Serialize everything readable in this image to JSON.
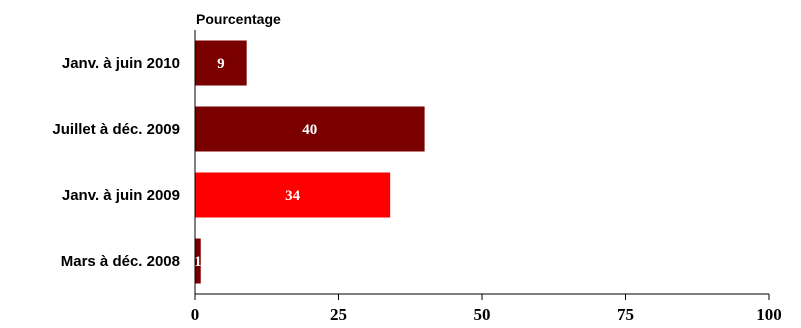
{
  "chart_data": {
    "type": "bar",
    "orientation": "horizontal",
    "ylabel": "Pourcentage",
    "categories": [
      "Janv. à juin 2010",
      "Juillet à déc. 2009",
      "Janv. à juin 2009",
      "Mars à déc. 2008"
    ],
    "values": [
      9,
      40,
      34,
      1
    ],
    "bar_colors": [
      "#7a0000",
      "#7a0000",
      "#ff0000",
      "#7a0000"
    ],
    "data_labels": [
      "9",
      "40",
      "34",
      "1"
    ],
    "xlim": [
      0,
      100
    ],
    "xticks": [
      "0",
      "25",
      "50",
      "75",
      "100"
    ],
    "grid": false,
    "legend": "none"
  }
}
